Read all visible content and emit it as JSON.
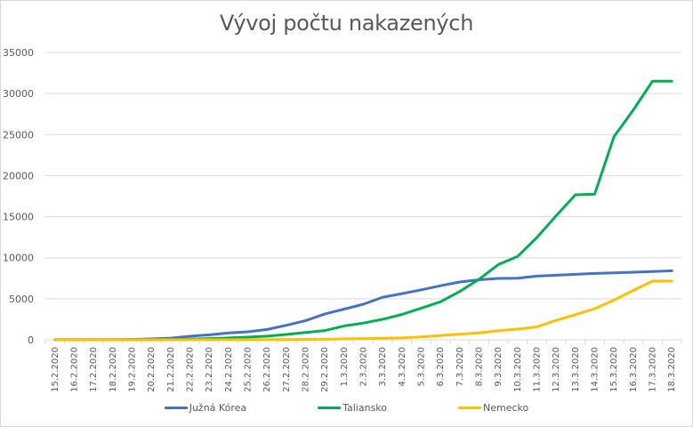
{
  "chart": {
    "title": "Vývoj počtu nakazených"
  },
  "chart_data": {
    "type": "line",
    "title": "Vývoj počtu nakazených",
    "xlabel": "",
    "ylabel": "",
    "ylim": [
      0,
      35000
    ],
    "yticks": [
      0,
      5000,
      10000,
      15000,
      20000,
      25000,
      30000,
      35000
    ],
    "grid": true,
    "legend_position": "bottom",
    "categories": [
      "15.2.2020",
      "16.2.2020",
      "17.2.2020",
      "18.2.2020",
      "19.2.2020",
      "20.2.2020",
      "21.2.2020",
      "22.2.2020",
      "23.2.2020",
      "24.2.2020",
      "25.2.2020",
      "26.2.2020",
      "27.2.2020",
      "28.2.2020",
      "29.2.2020",
      "1.3.2020",
      "2.3.2020",
      "3.3.2020",
      "4.3.2020",
      "5.3.2020",
      "6.3.2020",
      "7.3.2020",
      "8.3.2020",
      "9.3.2020",
      "10.3.2020",
      "11.3.2020",
      "12.3.2020",
      "13.3.2020",
      "14.3.2020",
      "15.3.2020",
      "16.3.2020",
      "17.3.2020",
      "18.3.2020"
    ],
    "series": [
      {
        "name": "Južná Kórea",
        "color": "#4472C4",
        "values": [
          28,
          29,
          30,
          31,
          51,
          104,
          204,
          433,
          602,
          833,
          977,
          1261,
          1766,
          2337,
          3150,
          3736,
          4335,
          5186,
          5621,
          6088,
          6593,
          7041,
          7314,
          7478,
          7513,
          7755,
          7869,
          7979,
          8086,
          8162,
          8236,
          8320,
          8413
        ]
      },
      {
        "name": "Taliansko",
        "color": "#00B050",
        "values": [
          3,
          3,
          3,
          3,
          3,
          3,
          20,
          79,
          150,
          227,
          320,
          445,
          650,
          888,
          1128,
          1694,
          2036,
          2502,
          3089,
          3858,
          4636,
          5883,
          7375,
          9172,
          10149,
          12462,
          15113,
          17660,
          17750,
          24747,
          27980,
          31506,
          31506
        ]
      },
      {
        "name": "Nemecko",
        "color": "#FFC000",
        "values": [
          16,
          16,
          16,
          16,
          16,
          16,
          16,
          16,
          16,
          16,
          18,
          21,
          26,
          53,
          66,
          117,
          150,
          188,
          240,
          349,
          534,
          684,
          847,
          1112,
          1296,
          1567,
          2369,
          3062,
          3795,
          4838,
          6012,
          7156,
          7156
        ]
      }
    ]
  },
  "legend": {
    "items": [
      {
        "label": "Južná Kórea",
        "color": "#4472C4"
      },
      {
        "label": "Taliansko",
        "color": "#00B050"
      },
      {
        "label": "Nemecko",
        "color": "#FFC000"
      }
    ]
  }
}
